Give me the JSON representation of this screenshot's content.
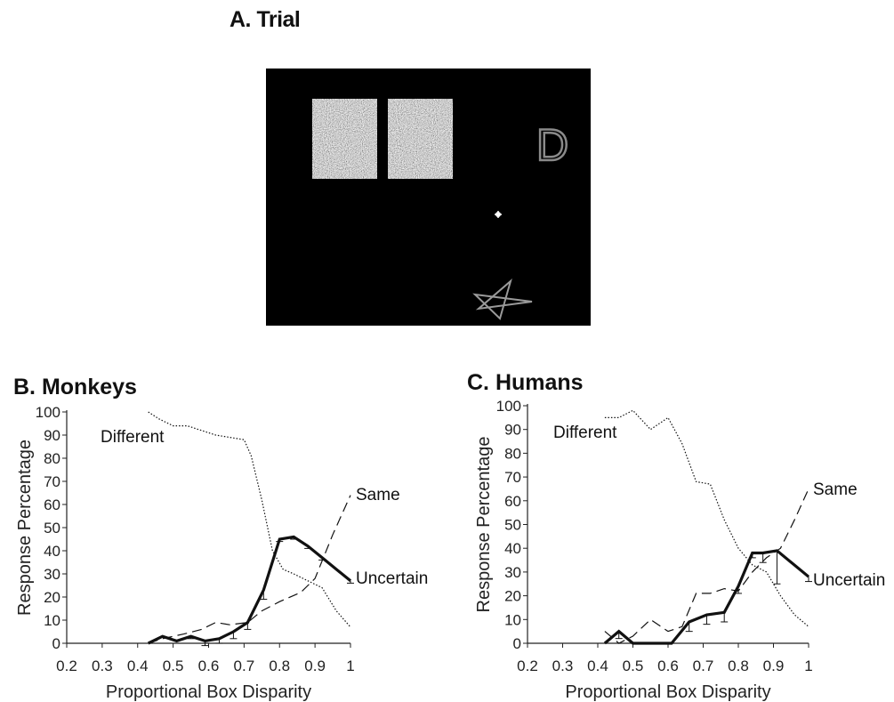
{
  "titles": {
    "trial": "A. Trial"
  },
  "trial_display": {
    "letter": "D"
  },
  "chart_data": [
    {
      "type": "line",
      "title": "B. Monkeys",
      "xlabel": "Proportional Box Disparity",
      "ylabel": "Response Percentage",
      "xlim": [
        0.2,
        1.0
      ],
      "ylim": [
        0,
        100
      ],
      "xticks": [
        0.2,
        0.3,
        0.4,
        0.5,
        0.6,
        0.7,
        0.8,
        0.9,
        1
      ],
      "xtick_labels": [
        "0.2",
        "0.3",
        "0.4",
        "0.5",
        "0.6",
        "0.7",
        "0.8",
        "0.9",
        "1"
      ],
      "yticks": [
        0,
        10,
        20,
        30,
        40,
        50,
        60,
        70,
        80,
        90,
        100
      ],
      "ytick_labels": [
        "0",
        "10",
        "20",
        "30",
        "40",
        "50",
        "60",
        "70",
        "80",
        "90",
        "100"
      ],
      "series": [
        {
          "name": "Different",
          "style": "dotted",
          "x": [
            0.43,
            0.46,
            0.5,
            0.54,
            0.58,
            0.62,
            0.66,
            0.7,
            0.72,
            0.75,
            0.78,
            0.81,
            0.84,
            0.88,
            0.92,
            0.96,
            1.0
          ],
          "y": [
            100,
            97,
            94,
            94,
            92,
            90,
            89,
            88,
            81,
            62,
            40,
            32,
            30,
            27,
            24,
            14,
            7
          ]
        },
        {
          "name": "Same",
          "style": "dashed",
          "x": [
            0.43,
            0.47,
            0.53,
            0.58,
            0.62,
            0.66,
            0.71,
            0.75,
            0.8,
            0.86,
            0.9,
            0.95,
            1.0
          ],
          "y": [
            0,
            2,
            4,
            6,
            9,
            8,
            9,
            14,
            18,
            22,
            28,
            47,
            64
          ]
        },
        {
          "name": "Uncertain",
          "style": "bold",
          "x": [
            0.43,
            0.47,
            0.51,
            0.55,
            0.59,
            0.63,
            0.67,
            0.71,
            0.755,
            0.8,
            0.84,
            0.88,
            0.92,
            1.0
          ],
          "y": [
            0,
            3,
            1,
            3,
            1,
            2,
            5,
            9,
            23,
            45,
            46,
            42,
            37,
            27
          ],
          "error": [
            0,
            0,
            0,
            1,
            2,
            2,
            3,
            3,
            4,
            1,
            1,
            1,
            1,
            1
          ]
        }
      ],
      "labels": {
        "Different": "Different",
        "Same": "Same",
        "Uncertain": "Uncertain"
      }
    },
    {
      "type": "line",
      "title": "C. Humans",
      "xlabel": "Proportional Box Disparity",
      "ylabel": "Response Percentage",
      "xlim": [
        0.2,
        1.0
      ],
      "ylim": [
        0,
        100
      ],
      "xticks": [
        0.2,
        0.3,
        0.4,
        0.5,
        0.6,
        0.7,
        0.8,
        0.9,
        1
      ],
      "xtick_labels": [
        "0.2",
        "0.3",
        "0.4",
        "0.5",
        "0.6",
        "0.7",
        "0.8",
        "0.9",
        "1"
      ],
      "yticks": [
        0,
        10,
        20,
        30,
        40,
        50,
        60,
        70,
        80,
        90,
        100
      ],
      "ytick_labels": [
        "0",
        "10",
        "20",
        "30",
        "40",
        "50",
        "60",
        "70",
        "80",
        "90",
        "100"
      ],
      "series": [
        {
          "name": "Different",
          "style": "dotted",
          "x": [
            0.42,
            0.46,
            0.5,
            0.55,
            0.6,
            0.64,
            0.68,
            0.72,
            0.76,
            0.8,
            0.84,
            0.88,
            0.92,
            0.96,
            1.0
          ],
          "y": [
            95,
            95,
            98,
            90,
            95,
            84,
            68,
            67,
            52,
            40,
            33,
            30,
            20,
            12,
            7
          ]
        },
        {
          "name": "Same",
          "style": "dashed",
          "x": [
            0.42,
            0.46,
            0.5,
            0.55,
            0.6,
            0.64,
            0.68,
            0.72,
            0.76,
            0.8,
            0.84,
            0.88,
            0.92,
            0.96,
            1.0
          ],
          "y": [
            5,
            0,
            3,
            10,
            5,
            7,
            21,
            21,
            23,
            22,
            30,
            36,
            40,
            52,
            65
          ]
        },
        {
          "name": "Uncertain",
          "style": "bold",
          "x": [
            0.42,
            0.46,
            0.5,
            0.55,
            0.61,
            0.66,
            0.71,
            0.76,
            0.8,
            0.84,
            0.87,
            0.91,
            1.0
          ],
          "y": [
            0,
            5,
            0,
            0,
            0,
            9,
            12,
            13,
            24,
            38,
            38,
            39,
            28
          ],
          "error": [
            0,
            3,
            0,
            0,
            0,
            4,
            4,
            4,
            3,
            2,
            4,
            14,
            2
          ]
        }
      ],
      "labels": {
        "Different": "Different",
        "Same": "Same",
        "Uncertain": "Uncertain"
      }
    }
  ]
}
